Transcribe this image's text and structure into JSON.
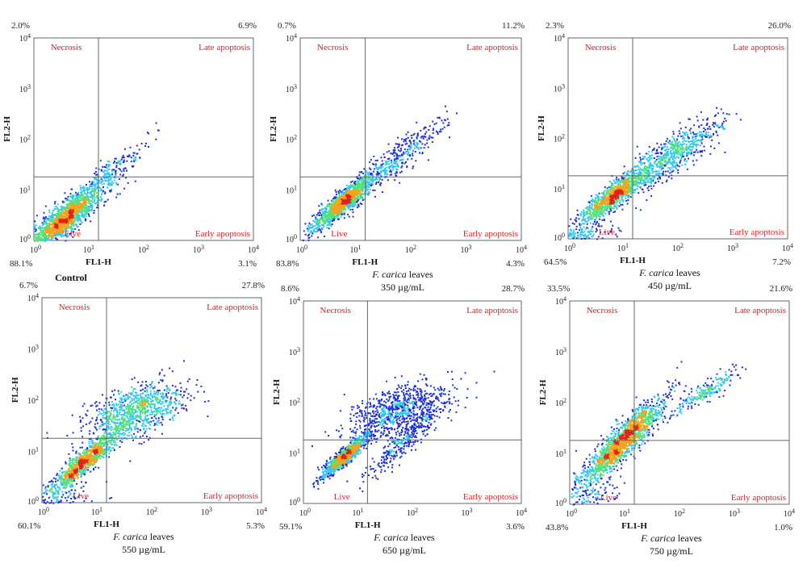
{
  "chart_data": [
    {
      "type": "scatter",
      "caption": {
        "label": "Control",
        "bold": true,
        "italic_part": "",
        "rest": "",
        "dose": ""
      },
      "xlabel": "FL1-H",
      "ylabel": "FL2-H",
      "xlim": [
        1,
        10000
      ],
      "ylim": [
        1,
        10000
      ],
      "log_scale": true,
      "quadrant_gate": {
        "x": 15,
        "y": 18
      },
      "quadrant_labels": {
        "upper_left": "Necrosis",
        "upper_right": "Late apoptosis",
        "lower_left": "Live",
        "lower_right": "Early apoptosis"
      },
      "quadrant_percentages": {
        "upper_left": "2.0%",
        "upper_right": "6.9%",
        "lower_left": "88.1%",
        "lower_right": "3.1%"
      },
      "x_tick_labels": [
        "10^0",
        "10^1",
        "10^2",
        "10^3",
        "10^4"
      ],
      "y_tick_labels": [
        "10^0",
        "10^1",
        "10^2",
        "10^3",
        "10^4"
      ]
    },
    {
      "type": "scatter",
      "caption": {
        "label": "",
        "bold": false,
        "italic_part": "F. carica",
        "rest": " leaves",
        "dose": "350 µg/mL"
      },
      "xlabel": "FL1-H",
      "ylabel": "FL2-H",
      "xlim": [
        1,
        10000
      ],
      "ylim": [
        1,
        10000
      ],
      "log_scale": true,
      "quadrant_gate": {
        "x": 15,
        "y": 18
      },
      "quadrant_labels": {
        "upper_left": "Necrosis",
        "upper_right": "Late apoptosis",
        "lower_left": "Live",
        "lower_right": "Early apoptosis"
      },
      "quadrant_percentages": {
        "upper_left": "0.7%",
        "upper_right": "11.2%",
        "lower_left": "83.8%",
        "lower_right": "4.3%"
      },
      "x_tick_labels": [
        "10^0",
        "10^1",
        "10^2",
        "10^3",
        "10^4"
      ],
      "y_tick_labels": [
        "10^0",
        "10^1",
        "10^2",
        "10^3",
        "10^4"
      ]
    },
    {
      "type": "scatter",
      "caption": {
        "label": "",
        "bold": false,
        "italic_part": "F. carica",
        "rest": " leaves",
        "dose": "450 µg/mL"
      },
      "xlabel": "FL1-H",
      "ylabel": "FL2-H",
      "xlim": [
        1,
        10000
      ],
      "ylim": [
        1,
        10000
      ],
      "log_scale": true,
      "quadrant_gate": {
        "x": 15,
        "y": 18
      },
      "quadrant_labels": {
        "upper_left": "Necrosis",
        "upper_right": "Late apoptosis",
        "lower_left": "Live",
        "lower_right": "Early apoptosis"
      },
      "quadrant_percentages": {
        "upper_left": "2.3%",
        "upper_right": "26.0%",
        "lower_left": "64.5%",
        "lower_right": "7.2%"
      },
      "x_tick_labels": [
        "10^0",
        "10^1",
        "10^2",
        "10^3",
        "10^4"
      ],
      "y_tick_labels": [
        "10^0",
        "10^1",
        "10^2",
        "10^3",
        "10^4"
      ]
    },
    {
      "type": "scatter",
      "caption": {
        "label": "",
        "bold": false,
        "italic_part": "F. carica",
        "rest": " leaves",
        "dose": "550 µg/mL"
      },
      "xlabel": "FL1-H",
      "ylabel": "FL2-H",
      "xlim": [
        1,
        10000
      ],
      "ylim": [
        1,
        10000
      ],
      "log_scale": true,
      "quadrant_gate": {
        "x": 15,
        "y": 18
      },
      "quadrant_labels": {
        "upper_left": "Necrosis",
        "upper_right": "Late apoptosis",
        "lower_left": "Live",
        "lower_right": "Early apoptosis"
      },
      "quadrant_percentages": {
        "upper_left": "6.7%",
        "upper_right": "27.8%",
        "lower_left": "60.1%",
        "lower_right": "5.3%"
      },
      "x_tick_labels": [
        "10^0",
        "10^1",
        "10^2",
        "10^3",
        "10^4"
      ],
      "y_tick_labels": [
        "10^0",
        "10^1",
        "10^2",
        "10^3",
        "10^4"
      ]
    },
    {
      "type": "scatter",
      "caption": {
        "label": "",
        "bold": false,
        "italic_part": "F. carica",
        "rest": " leaves",
        "dose": "650 µg/mL"
      },
      "xlabel": "FL1-H",
      "ylabel": "FL2-H",
      "xlim": [
        1,
        10000
      ],
      "ylim": [
        1,
        10000
      ],
      "log_scale": true,
      "quadrant_gate": {
        "x": 15,
        "y": 18
      },
      "quadrant_labels": {
        "upper_left": "Necrosis",
        "upper_right": "Late apoptosis",
        "lower_left": "Live",
        "lower_right": "Early apoptosis"
      },
      "quadrant_percentages": {
        "upper_left": "8.6%",
        "upper_right": "28.7%",
        "lower_left": "59.1%",
        "lower_right": "3.6%"
      },
      "x_tick_labels": [
        "10^0",
        "10^1",
        "10^2",
        "10^3",
        "10^4"
      ],
      "y_tick_labels": [
        "10^0",
        "10^1",
        "10^2",
        "10^3",
        "10^4"
      ]
    },
    {
      "type": "scatter",
      "caption": {
        "label": "",
        "bold": false,
        "italic_part": "F. carica",
        "rest": " leaves",
        "dose": "750 µg/mL"
      },
      "xlabel": "FL1-H",
      "ylabel": "FL2-H",
      "xlim": [
        1,
        10000
      ],
      "ylim": [
        1,
        10000
      ],
      "log_scale": true,
      "quadrant_gate": {
        "x": 15,
        "y": 18
      },
      "quadrant_labels": {
        "upper_left": "Necrosis",
        "upper_right": "Late apoptosis",
        "lower_left": "Live",
        "lower_right": "Early apoptosis"
      },
      "quadrant_percentages": {
        "upper_left": "33.5%",
        "upper_right": "21.6%",
        "lower_left": "43.8%",
        "lower_right": "1.0%"
      },
      "x_tick_labels": [
        "10^0",
        "10^1",
        "10^2",
        "10^3",
        "10^4"
      ],
      "y_tick_labels": [
        "10^0",
        "10^1",
        "10^2",
        "10^3",
        "10^4"
      ]
    }
  ],
  "colors": {
    "frame": "#5a6a6a",
    "quadrant_label": "#d61f26",
    "density_low": "#1a2fd8",
    "density_mid": "#2ec8f0",
    "density_high": "#55e07a",
    "density_peak": "#e0221a"
  }
}
